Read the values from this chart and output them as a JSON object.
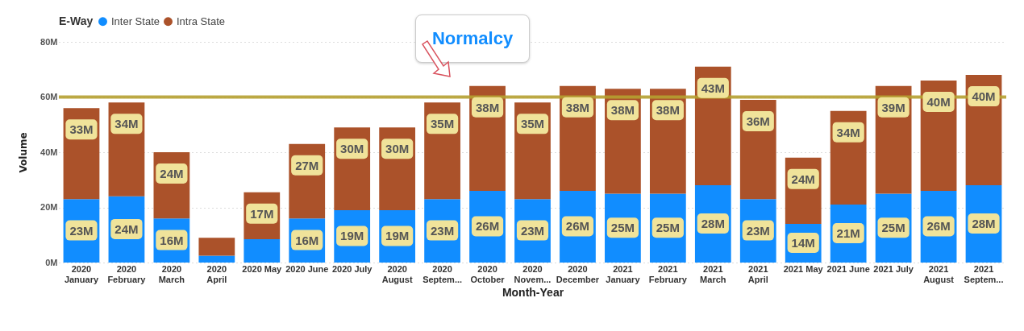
{
  "chart_data": {
    "type": "bar",
    "stacked": true,
    "categories": [
      "2020 January",
      "2020 February",
      "2020 March",
      "2020 April",
      "2020 May",
      "2020 June",
      "2020 July",
      "2020 August",
      "2020 Septem...",
      "2020 October",
      "2020 Novem...",
      "2020 December",
      "2021 January",
      "2021 February",
      "2021 March",
      "2021 April",
      "2021 May",
      "2021 June",
      "2021 July",
      "2021 August",
      "2021 Septem..."
    ],
    "series": [
      {
        "name": "Inter State",
        "color": "#118dff",
        "values": [
          23,
          24,
          16,
          2.5,
          8.5,
          16,
          19,
          19,
          23,
          26,
          23,
          26,
          25,
          25,
          28,
          23,
          14,
          21,
          25,
          26,
          28
        ],
        "value_labels": [
          "23M",
          "24M",
          "16M",
          null,
          null,
          "16M",
          "19M",
          "19M",
          "23M",
          "26M",
          "23M",
          "26M",
          "25M",
          "25M",
          "28M",
          "23M",
          "14M",
          "21M",
          "25M",
          "26M",
          "28M"
        ]
      },
      {
        "name": "Intra State",
        "color": "#ab522a",
        "values": [
          33,
          34,
          24,
          6.5,
          17,
          27,
          30,
          30,
          35,
          38,
          35,
          38,
          38,
          38,
          43,
          36,
          24,
          34,
          39,
          40,
          40
        ],
        "value_labels": [
          "33M",
          "34M",
          "24M",
          null,
          "17M",
          "27M",
          "30M",
          "30M",
          "35M",
          "38M",
          "35M",
          "38M",
          "38M",
          "38M",
          "43M",
          "36M",
          "24M",
          "34M",
          "39M",
          "40M",
          "40M"
        ]
      }
    ],
    "xlabel": "Month-Year",
    "ylabel": "Volume",
    "legend_title": "E-Way",
    "legend": "top left",
    "ylim": [
      0,
      80
    ],
    "yticks": [
      {
        "value": 0,
        "label": "0M"
      },
      {
        "value": 20,
        "label": "20M"
      },
      {
        "value": 40,
        "label": "40M"
      },
      {
        "value": 60,
        "label": "60M"
      },
      {
        "value": 80,
        "label": "80M"
      }
    ],
    "grid": "y",
    "ref_lines": [
      {
        "axis": "y",
        "value": 60,
        "label": "Normalcy",
        "color": "#b5a030"
      }
    ]
  }
}
